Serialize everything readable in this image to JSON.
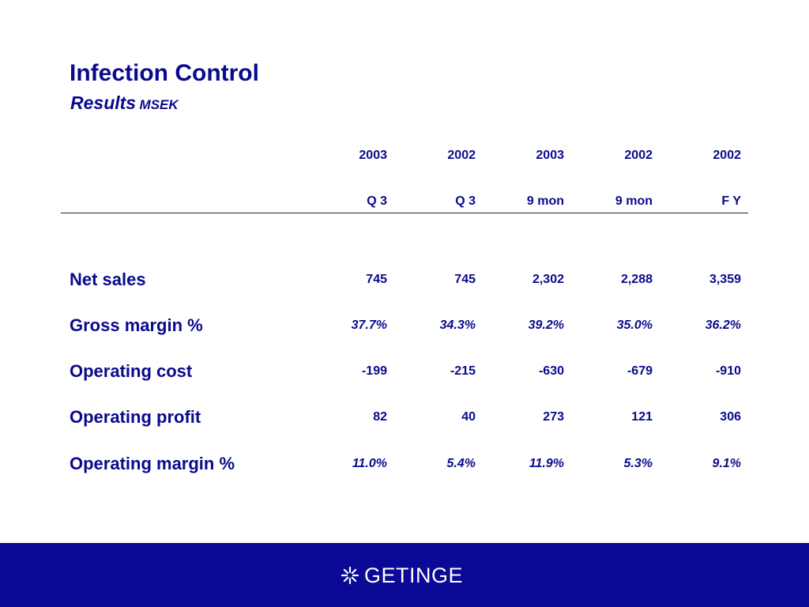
{
  "header": {
    "title": "Infection Control",
    "subtitle": "Results",
    "unit": "MSEK"
  },
  "table": {
    "columns": [
      {
        "year": "2003",
        "period": "Q 3"
      },
      {
        "year": "2002",
        "period": "Q 3"
      },
      {
        "year": "2003",
        "period": "9 mon"
      },
      {
        "year": "2002",
        "period": "9 mon"
      },
      {
        "year": "2002",
        "period": "F Y"
      }
    ],
    "rows": [
      {
        "label": "Net sales",
        "values": [
          "745",
          "745",
          "2,302",
          "2,288",
          "3,359"
        ]
      },
      {
        "label": "Gross margin %",
        "values": [
          "37.7%",
          "34.3%",
          "39.2%",
          "35.0%",
          "36.2%"
        ]
      },
      {
        "label": "Operating cost",
        "values": [
          "-199",
          "-215",
          "-630",
          "-679",
          "-910"
        ]
      },
      {
        "label": "Operating profit",
        "values": [
          "82",
          "40",
          "273",
          "121",
          "306"
        ]
      },
      {
        "label": "Operating margin %",
        "values": [
          "11.0%",
          "5.4%",
          "11.9%",
          "5.3%",
          "9.1%"
        ]
      }
    ]
  },
  "footer": {
    "logo_text": "GETINGE",
    "background_color": "#0a0a96",
    "logo_icon": "getinge-star-icon"
  },
  "colors": {
    "text": "#0a0a8c",
    "background": "#ffffff"
  }
}
